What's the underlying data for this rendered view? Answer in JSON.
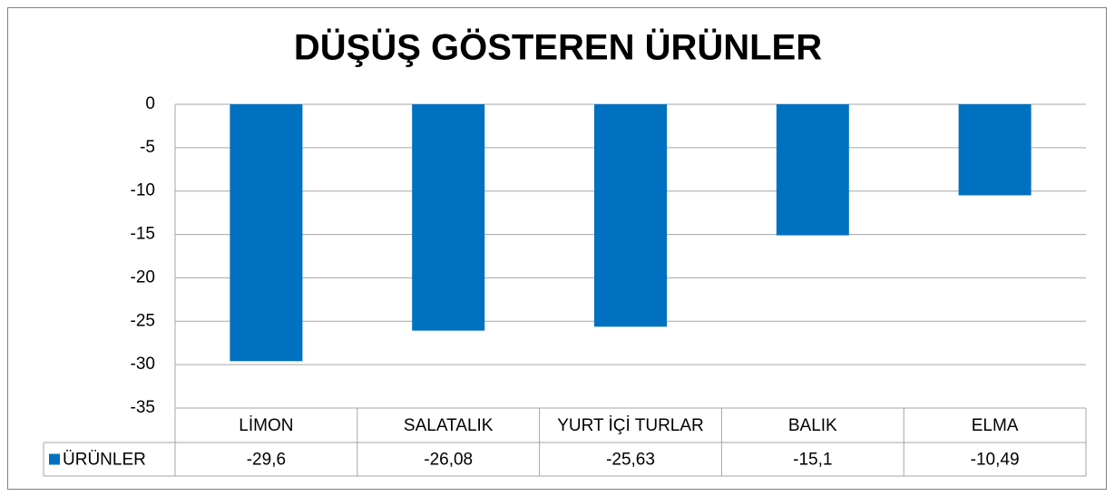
{
  "chart_data": {
    "type": "bar",
    "title": "DÜŞÜŞ GÖSTEREN ÜRÜNLER",
    "categories": [
      "LİMON",
      "SALATALIK",
      "YURT İÇİ TURLAR",
      "BALIK",
      "ELMA"
    ],
    "series": [
      {
        "name": "ÜRÜNLER",
        "color": "#0070c0",
        "values": [
          -29.6,
          -26.08,
          -25.63,
          -15.1,
          -10.49
        ],
        "value_labels": [
          "-29,6",
          "-26,08",
          "-25,63",
          "-15,1",
          "-10,49"
        ]
      }
    ],
    "ylim": [
      -35,
      0
    ],
    "yticks": [
      0,
      -5,
      -10,
      -15,
      -20,
      -25,
      -30,
      -35
    ],
    "grid": true
  }
}
